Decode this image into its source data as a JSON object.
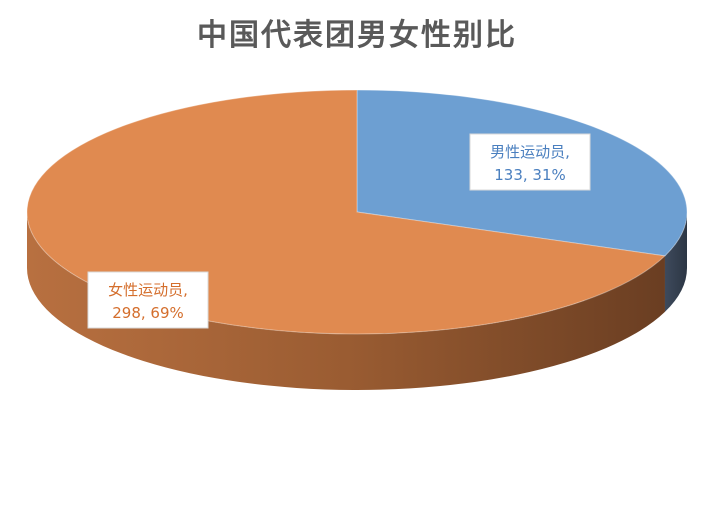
{
  "chart_data": {
    "type": "pie",
    "title": "中国代表团男女性别比",
    "slices": [
      {
        "name": "男性运动员",
        "value": 133,
        "percent": "31%",
        "color": "#6d9fd2",
        "side_color": "#36404f",
        "label_color": "#4a7fbf"
      },
      {
        "name": "女性运动员",
        "value": 298,
        "percent": "69%",
        "color": "#e08a50",
        "side_color": "#8a5630",
        "label_color": "#d46e2c"
      }
    ],
    "style": "3d-pie",
    "legend": "none"
  }
}
